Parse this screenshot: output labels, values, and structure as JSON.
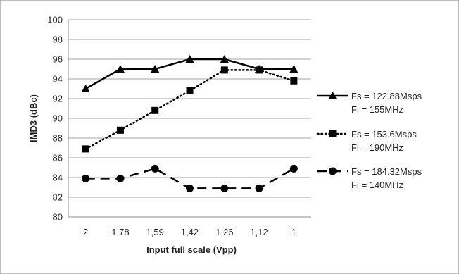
{
  "chart_data": {
    "type": "line",
    "title": "",
    "xlabel": "Input full scale (Vpp)",
    "ylabel": "IMD3 (dBc)",
    "categories": [
      "2",
      "1,78",
      "1,59",
      "1,42",
      "1,26",
      "1,12",
      "1"
    ],
    "ylim": [
      80,
      100
    ],
    "yticks": [
      80,
      82,
      84,
      86,
      88,
      90,
      92,
      94,
      96,
      98,
      100
    ],
    "grid": "horizontal",
    "legend_position": "right",
    "series": [
      {
        "name_line1": "Fs = 122.88Msps",
        "name_line2": "Fi = 155MHz",
        "marker": "triangle",
        "line_style": "solid",
        "color": "#000000",
        "values": [
          93,
          95,
          95,
          96,
          96,
          95,
          95
        ]
      },
      {
        "name_line1": "Fs = 153.6Msps",
        "name_line2": "Fi = 190MHz",
        "marker": "square",
        "line_style": "dotted",
        "color": "#000000",
        "values": [
          86.9,
          88.8,
          90.8,
          92.8,
          94.9,
          94.9,
          93.8
        ]
      },
      {
        "name_line1": "Fs = 184.32Msps",
        "name_line2": "Fi = 140MHz",
        "marker": "circle",
        "line_style": "dashed",
        "color": "#000000",
        "values": [
          83.9,
          83.9,
          84.9,
          82.9,
          82.9,
          82.9,
          84.9
        ]
      }
    ]
  }
}
